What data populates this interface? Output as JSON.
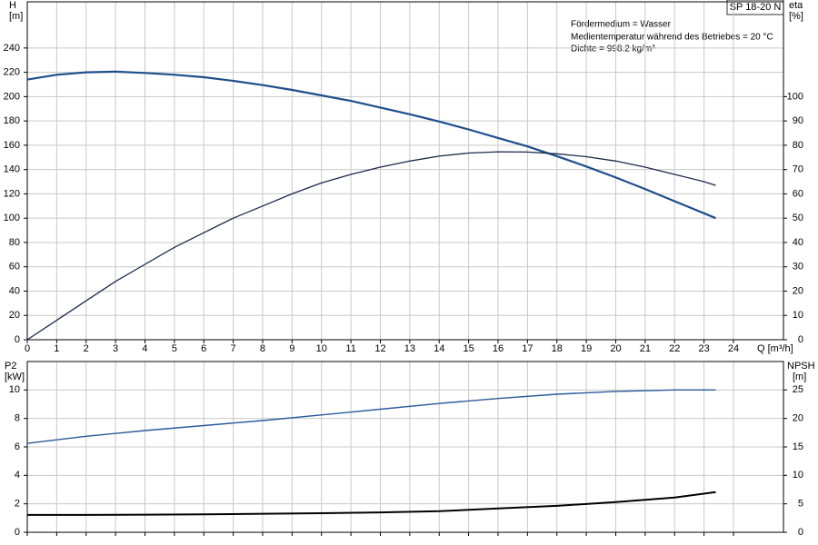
{
  "chart_data": [
    {
      "type": "line",
      "x_label": "Q [m³/h]",
      "y_label": "H",
      "y_unit": "[m]",
      "y2_label": "eta",
      "y2_unit": "[%]",
      "pump": "SP 18-20 N",
      "annotations": [
        "Fördermedium = Wasser",
        "Medientemperatur während des Betriebes = 20 °C",
        "Dichte = 998.2 kg/m³"
      ],
      "x": [
        0,
        1,
        2,
        3,
        4,
        5,
        6,
        7,
        8,
        9,
        10,
        11,
        12,
        13,
        14,
        15,
        16,
        17,
        18,
        19,
        20,
        21,
        22,
        23,
        23.4
      ],
      "series": [
        {
          "name": "H",
          "color": "#1f4e8c",
          "width": 2.2,
          "axis": "y",
          "values": [
            214,
            218,
            220,
            220.5,
            219.5,
            218,
            216,
            213,
            209.5,
            205.5,
            201,
            196.5,
            191,
            185.5,
            179.5,
            173,
            166,
            159,
            151,
            142.5,
            133.5,
            124,
            114,
            104,
            100
          ]
        },
        {
          "name": "eta",
          "color": "#1a2a4a",
          "width": 1.3,
          "axis": "y2",
          "values": [
            0,
            8,
            16,
            24,
            31,
            38,
            44,
            50,
            55,
            60,
            64.5,
            68,
            71,
            73.5,
            75.5,
            76.8,
            77.3,
            77.2,
            76.5,
            75.3,
            73.5,
            71,
            68,
            65,
            63.5
          ]
        }
      ],
      "xlim": [
        0,
        25.7
      ],
      "xticks": [
        0,
        1,
        2,
        3,
        4,
        5,
        6,
        7,
        8,
        9,
        10,
        11,
        12,
        13,
        14,
        15,
        16,
        17,
        18,
        19,
        20,
        21,
        22,
        23,
        24
      ],
      "ylim": [
        0,
        278
      ],
      "yticks": [
        0,
        20,
        40,
        60,
        80,
        100,
        120,
        140,
        160,
        180,
        200,
        220,
        240
      ],
      "y2lim": [
        0,
        139
      ],
      "y2ticks": [
        0,
        10,
        20,
        30,
        40,
        50,
        60,
        70,
        80,
        90,
        100
      ],
      "grid": true
    },
    {
      "type": "line",
      "y_label": "P2",
      "y_unit": "[kW]",
      "y2_label": "NPSH",
      "y2_unit": "[m]",
      "x": [
        0,
        2,
        4,
        6,
        8,
        10,
        12,
        14,
        16,
        18,
        20,
        22,
        23.4
      ],
      "series": [
        {
          "name": "P2",
          "color": "#2a5a9a",
          "width": 1.4,
          "axis": "y",
          "values": [
            6.25,
            6.75,
            7.15,
            7.5,
            7.85,
            8.25,
            8.65,
            9.05,
            9.4,
            9.7,
            9.9,
            10.0,
            10.0
          ]
        },
        {
          "name": "NPSH",
          "color": "#000000",
          "width": 2,
          "axis": "y2",
          "values": [
            3.05,
            3.05,
            3.1,
            3.15,
            3.25,
            3.35,
            3.5,
            3.7,
            4.2,
            4.65,
            5.3,
            6.1,
            7.05
          ]
        }
      ],
      "xlim": [
        0,
        25.7
      ],
      "ylim": [
        0,
        12
      ],
      "yticks": [
        0,
        2,
        4,
        6,
        8,
        10
      ],
      "y2lim": [
        0,
        30
      ],
      "y2ticks": [
        0,
        5,
        10,
        15,
        20,
        25
      ],
      "grid": true
    }
  ]
}
